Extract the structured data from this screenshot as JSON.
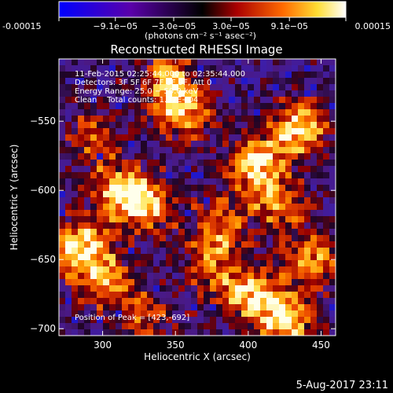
{
  "colorbar": {
    "tick_labels": [
      "-0.00015",
      "−9.1e−05",
      "−3.0e−05",
      "3.0e−05",
      "9.1e−05",
      "0.00015"
    ],
    "tick_values": [
      -0.00015,
      -9.1e-05,
      -3e-05,
      3e-05,
      9.1e-05,
      0.00015
    ],
    "range": [
      -0.00015,
      0.00015
    ],
    "unit_label": "(photons cm⁻² s⁻¹ asec⁻²)"
  },
  "chart_data": {
    "type": "heatmap",
    "title": "Reconstructed RHESSI Image",
    "xlabel": "Heliocentric X (arcsec)",
    "ylabel": "Heliocentric Y (arcsec)",
    "xlim": [
      270,
      460
    ],
    "ylim": [
      -705,
      -505
    ],
    "x_ticks": [
      300,
      350,
      400,
      450
    ],
    "x_tick_labels": [
      "300",
      "350",
      "400",
      "450"
    ],
    "y_ticks": [
      -700,
      -650,
      -600,
      -550
    ],
    "y_tick_labels": [
      "−700",
      "−650",
      "−600",
      "−550"
    ],
    "hotspots": [
      {
        "x": 435,
        "y": -555,
        "intensity": 1.0
      },
      {
        "x": 405,
        "y": -580,
        "intensity": 0.95
      },
      {
        "x": 425,
        "y": -692,
        "intensity": 1.0
      },
      {
        "x": 400,
        "y": -675,
        "intensity": 0.8
      },
      {
        "x": 445,
        "y": -650,
        "intensity": 0.75
      },
      {
        "x": 285,
        "y": -640,
        "intensity": 0.95
      },
      {
        "x": 300,
        "y": -665,
        "intensity": 0.8
      },
      {
        "x": 330,
        "y": -610,
        "intensity": 0.85
      },
      {
        "x": 310,
        "y": -600,
        "intensity": 0.8
      },
      {
        "x": 355,
        "y": -545,
        "intensity": 0.85
      },
      {
        "x": 345,
        "y": -520,
        "intensity": 0.7
      },
      {
        "x": 380,
        "y": -625,
        "intensity": 0.65
      },
      {
        "x": 375,
        "y": -655,
        "intensity": 0.6
      },
      {
        "x": 295,
        "y": -560,
        "intensity": 0.55
      },
      {
        "x": 420,
        "y": -610,
        "intensity": 0.7
      },
      {
        "x": 330,
        "y": -690,
        "intensity": 0.55
      }
    ],
    "annotations": [
      "11-Feb-2015 02:25:44.000 to 02:35:44.000",
      "Detectors: 3F 5F 6F 7F 8F 9F, Att 0",
      "Energy Range: 25.0 − 50.0 keV",
      "Clean    Total counts: 1.37E+04"
    ],
    "peak_label": "Position of Peak = [423,-692]"
  },
  "footer": {
    "date": "5-Aug-2017 23:11"
  }
}
